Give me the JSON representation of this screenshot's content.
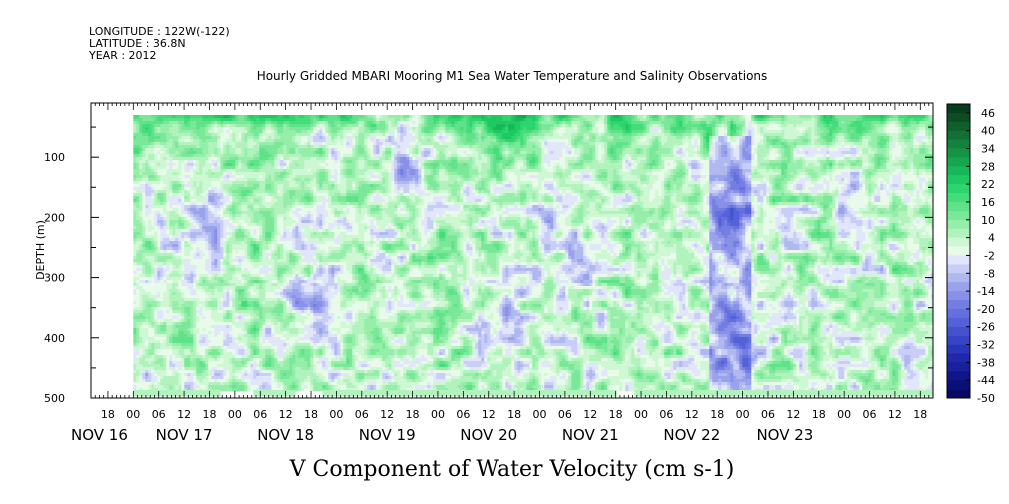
{
  "header": {
    "longitude": "LONGITUDE : 122W(-122)",
    "latitude": "LATITUDE : 36.8N",
    "year": "YEAR : 2012"
  },
  "chart_data": {
    "type": "heatmap",
    "title": "Hourly Gridded MBARI Mooring M1 Sea Water Temperature and Salinity Observations",
    "xlabel": "V Component of Water Velocity (cm s-1)",
    "ylabel": "DEPTH (m)",
    "y_ticks": [
      100,
      200,
      300,
      400,
      500
    ],
    "y_tick_labels": [
      "100",
      "200",
      "300",
      "400",
      "500"
    ],
    "ylim": [
      500,
      10
    ],
    "x_range_hours": [
      -10,
      189
    ],
    "data_start_hour": 0,
    "x_hour_ticks": [
      {
        "hour": -6,
        "label": "18"
      },
      {
        "hour": 0,
        "label": "00"
      },
      {
        "hour": 6,
        "label": "06"
      },
      {
        "hour": 12,
        "label": "12"
      },
      {
        "hour": 18,
        "label": "18"
      },
      {
        "hour": 24,
        "label": "00"
      },
      {
        "hour": 30,
        "label": "06"
      },
      {
        "hour": 36,
        "label": "12"
      },
      {
        "hour": 42,
        "label": "18"
      },
      {
        "hour": 48,
        "label": "00"
      },
      {
        "hour": 54,
        "label": "06"
      },
      {
        "hour": 60,
        "label": "12"
      },
      {
        "hour": 66,
        "label": "18"
      },
      {
        "hour": 72,
        "label": "00"
      },
      {
        "hour": 78,
        "label": "06"
      },
      {
        "hour": 84,
        "label": "12"
      },
      {
        "hour": 90,
        "label": "18"
      },
      {
        "hour": 96,
        "label": "00"
      },
      {
        "hour": 102,
        "label": "06"
      },
      {
        "hour": 108,
        "label": "12"
      },
      {
        "hour": 114,
        "label": "18"
      },
      {
        "hour": 120,
        "label": "00"
      },
      {
        "hour": 126,
        "label": "06"
      },
      {
        "hour": 132,
        "label": "12"
      },
      {
        "hour": 138,
        "label": "18"
      },
      {
        "hour": 144,
        "label": "00"
      },
      {
        "hour": 150,
        "label": "06"
      },
      {
        "hour": 156,
        "label": "12"
      },
      {
        "hour": 162,
        "label": "18"
      },
      {
        "hour": 168,
        "label": "00"
      },
      {
        "hour": 174,
        "label": "06"
      },
      {
        "hour": 180,
        "label": "12"
      },
      {
        "hour": 186,
        "label": "18"
      }
    ],
    "x_day_labels": [
      {
        "hour": -8,
        "label": "NOV 16"
      },
      {
        "hour": 12,
        "label": "NOV 17"
      },
      {
        "hour": 36,
        "label": "NOV 18"
      },
      {
        "hour": 60,
        "label": "NOV 19"
      },
      {
        "hour": 84,
        "label": "NOV 20"
      },
      {
        "hour": 108,
        "label": "NOV 21"
      },
      {
        "hour": 132,
        "label": "NOV 22"
      },
      {
        "hour": 154,
        "label": "NOV 23"
      }
    ],
    "colorbar": {
      "labels": [
        "46",
        "40",
        "34",
        "28",
        "22",
        "16",
        "10",
        "4",
        "-2",
        "-8",
        "-14",
        "-20",
        "-26",
        "-32",
        "-38",
        "-44",
        "-50"
      ],
      "levels": [
        49,
        46,
        43,
        40,
        37,
        34,
        31,
        28,
        25,
        22,
        19,
        16,
        13,
        10,
        7,
        4,
        1,
        -2,
        -5,
        -8,
        -11,
        -14,
        -17,
        -20,
        -23,
        -26,
        -29,
        -32,
        -35,
        -38,
        -41,
        -44,
        -47,
        -50
      ],
      "colors": [
        "#0a3d1f",
        "#0d4d26",
        "#0f5e2e",
        "#117036",
        "#12823e",
        "#139446",
        "#15a64e",
        "#17b858",
        "#1fc862",
        "#2ed46d",
        "#45dc7a",
        "#5fe289",
        "#7ae898",
        "#95eea9",
        "#b2f3bd",
        "#cef7d3",
        "#e8fbe9",
        "#e2e6fb",
        "#c8cef6",
        "#b0b8f0",
        "#9aa2ec",
        "#8890e8",
        "#747ee2",
        "#6470de",
        "#5462d9",
        "#4452d0",
        "#3644c6",
        "#2a36ba",
        "#2029ac",
        "#18209c",
        "#10168a",
        "#0b0f78",
        "#070a63"
      ]
    },
    "series": [
      {
        "x_hour": 5,
        "depth": 450,
        "value": -1
      },
      {
        "x_hour": 16,
        "depth": 210,
        "value": -12
      },
      {
        "x_hour": 40,
        "depth": 350,
        "value": -11
      },
      {
        "x_hour": 64,
        "depth": 120,
        "value": -14
      },
      {
        "x_hour": 86,
        "depth": 360,
        "value": -13
      },
      {
        "x_hour": 102,
        "depth": 260,
        "value": -9
      },
      {
        "x_hour": 140,
        "depth": 180,
        "value": -16
      },
      {
        "x_hour": 142,
        "depth": 420,
        "value": -18
      },
      {
        "x_hour": 170,
        "depth": 180,
        "value": -8
      },
      {
        "x_hour": 30,
        "depth": 290,
        "value": 12
      },
      {
        "x_hour": 70,
        "depth": 300,
        "value": 10
      },
      {
        "x_hour": 88,
        "depth": 40,
        "value": 30
      },
      {
        "x_hour": 120,
        "depth": 400,
        "value": 8
      }
    ]
  }
}
